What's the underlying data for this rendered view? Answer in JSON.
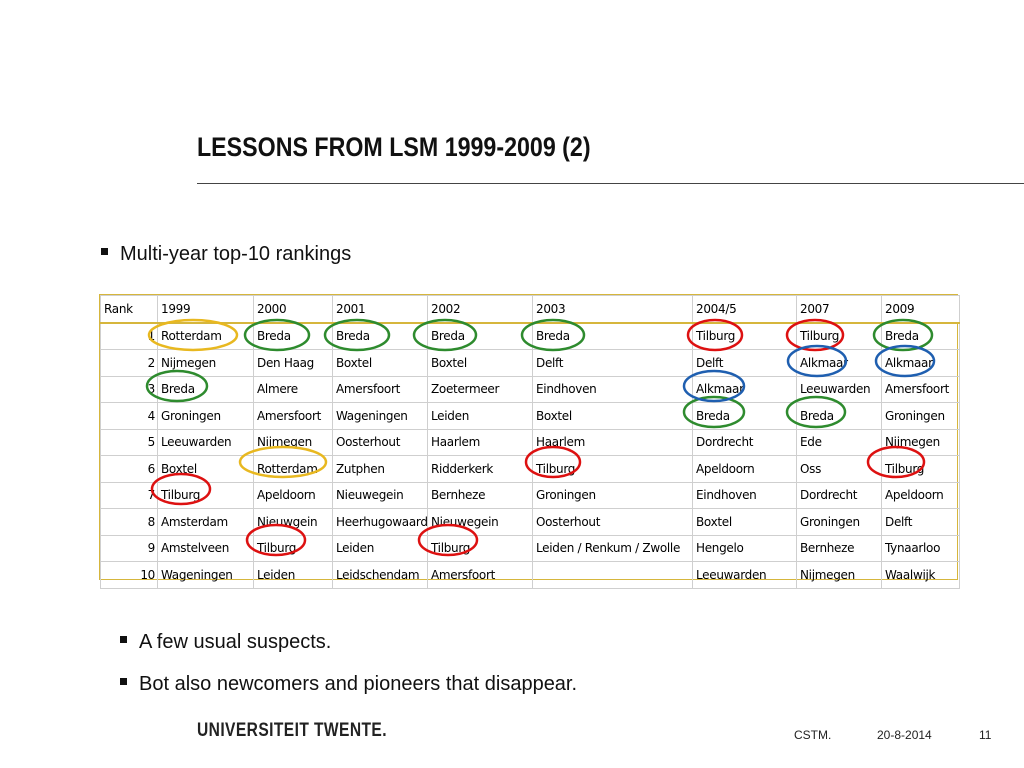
{
  "slide": {
    "title": "LESSONS FROM LSM 1999-2009 (2)",
    "bullet_main": "Multi-year top-10 rankings",
    "sub_bullets": [
      "A few usual suspects.",
      "Bot also newcomers and pioneers that disappear."
    ]
  },
  "table": {
    "headers": [
      "Rank",
      "1999",
      "2000",
      "2001",
      "2002",
      "2003",
      "2004/5",
      "2007",
      "2009"
    ],
    "rows": [
      [
        "1",
        "Rotterdam",
        "Breda",
        "Breda",
        "Breda",
        "Breda",
        "Tilburg",
        "Tilburg",
        "Breda"
      ],
      [
        "2",
        "Nijmegen",
        "Den Haag",
        "Boxtel",
        "Boxtel",
        "Delft",
        "Delft",
        "Alkmaar",
        "Alkmaar"
      ],
      [
        "3",
        "Breda",
        "Almere",
        "Amersfoort",
        "Zoetermeer",
        "Eindhoven",
        "Alkmaar",
        "Leeuwarden",
        "Amersfoort"
      ],
      [
        "4",
        "Groningen",
        "Amersfoort",
        "Wageningen",
        "Leiden",
        "Boxtel",
        "Breda",
        "Breda",
        "Groningen"
      ],
      [
        "5",
        "Leeuwarden",
        "Nijmegen",
        "Oosterhout",
        "Haarlem",
        "Haarlem",
        "Dordrecht",
        "Ede",
        "Nijmegen"
      ],
      [
        "6",
        "Boxtel",
        "Rotterdam",
        "Zutphen",
        "Ridderkerk",
        "Tilburg",
        "Apeldoorn",
        "Oss",
        "Tilburg"
      ],
      [
        "7",
        "Tilburg",
        "Apeldoorn",
        "Nieuwegein",
        "Bernheze",
        "Groningen",
        "Eindhoven",
        "Dordrecht",
        "Apeldoorn"
      ],
      [
        "8",
        "Amsterdam",
        "Nieuwgein",
        "Heerhugowaard",
        "Nieuwegein",
        "Oosterhout",
        "Boxtel",
        "Groningen",
        "Delft"
      ],
      [
        "9",
        "Amstelveen",
        "Tilburg",
        "Leiden",
        "Tilburg",
        "Leiden / Renkum / Zwolle",
        "Hengelo",
        "Bernheze",
        "Tynaarloo"
      ],
      [
        "10",
        "Wageningen",
        "Leiden",
        "Leidschendam",
        "Amersfoort",
        "",
        "Leeuwarden",
        "Nijmegen",
        "Waalwijk"
      ]
    ]
  },
  "highlight_colors": {
    "breda": "#2e8b2e",
    "tilburg": "#dd1111",
    "alkmaar": "#1f5fb0",
    "rotterdam": "#e8b820"
  },
  "footer": {
    "logo": "UNIVERSITEIT TWENTE.",
    "org": "CSTM.",
    "date": "20-8-2014",
    "page": "11"
  }
}
